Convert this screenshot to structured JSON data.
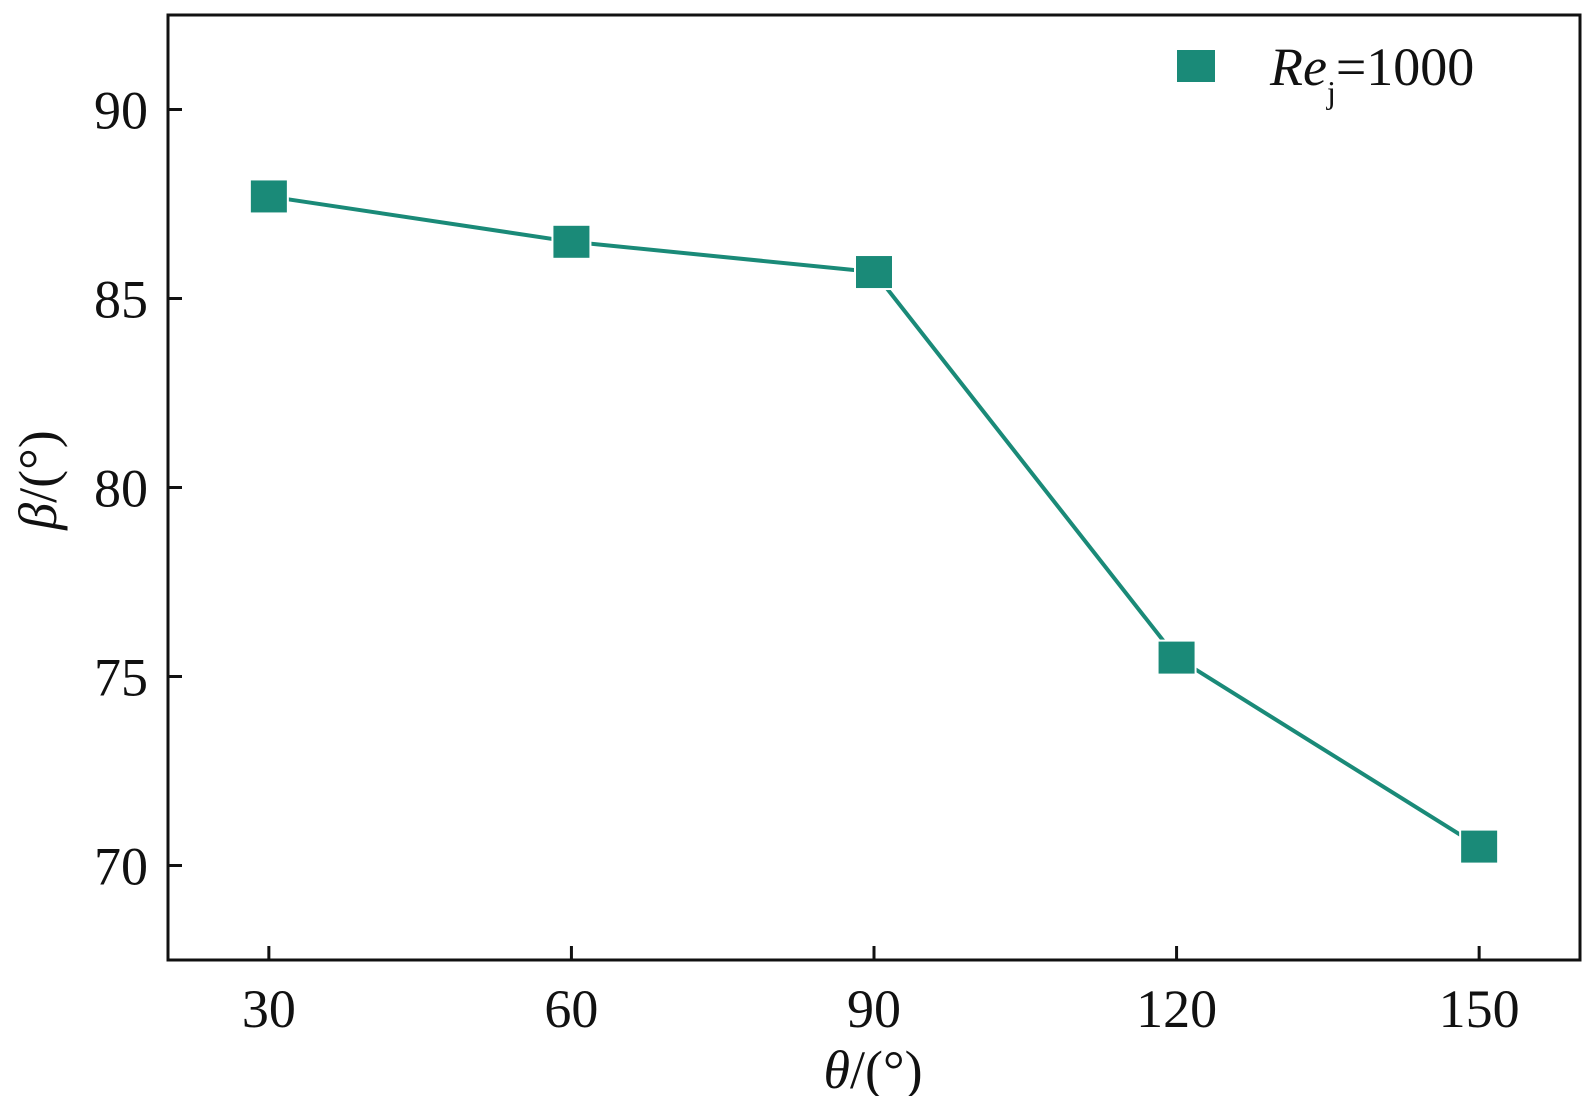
{
  "chart_data": {
    "type": "line",
    "x": [
      30,
      60,
      90,
      120,
      150
    ],
    "x_tick_labels": [
      "30",
      "60",
      "90",
      "120",
      "150"
    ],
    "y_tick_values": [
      70,
      75,
      80,
      85,
      90
    ],
    "y_tick_labels": [
      "70",
      "75",
      "80",
      "85",
      "90"
    ],
    "xlim": [
      20,
      160
    ],
    "ylim": [
      67.5,
      92.5
    ],
    "xlabel": {
      "symbol": "θ",
      "unit": "/(°)"
    },
    "ylabel": {
      "symbol": "β",
      "unit": "/(°)"
    },
    "series": [
      {
        "name": "Rej=1000",
        "name_parts": {
          "main": "Re",
          "sub": "j",
          "rest": "=1000"
        },
        "color": "#1a8a78",
        "marker": "square",
        "values": [
          87.7,
          86.5,
          85.7,
          75.5,
          70.5
        ]
      }
    ],
    "legend_position": "top-right",
    "grid": false
  }
}
